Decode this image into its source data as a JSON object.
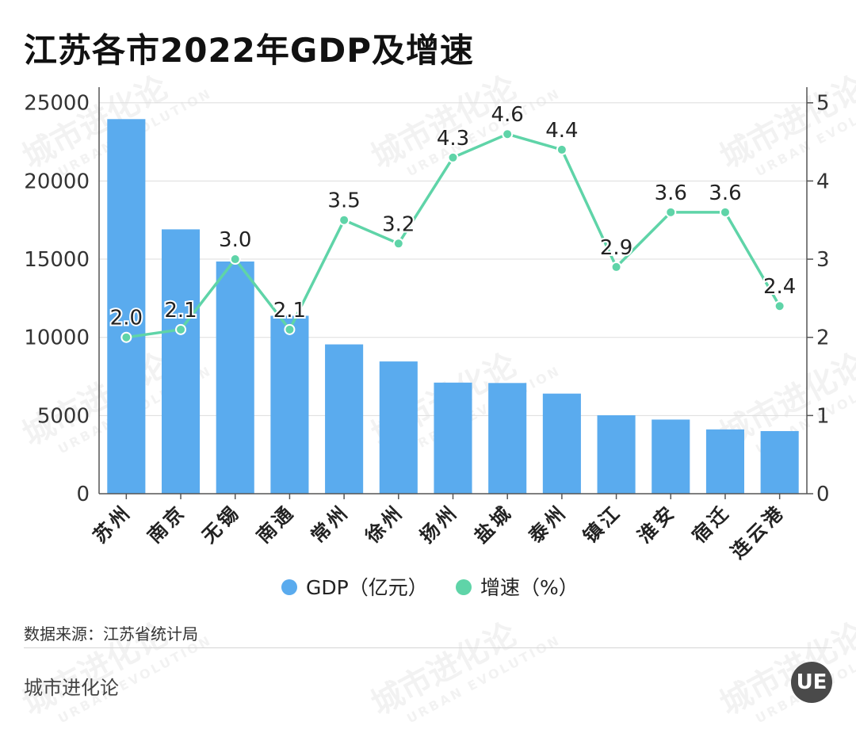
{
  "title": "江苏各市2022年GDP及增速",
  "source": "数据来源：江苏省统计局",
  "brand": "城市进化论",
  "logo_text": "UE",
  "watermark": {
    "main": "城市进化论",
    "sub": "URBAN EVOLUTION"
  },
  "colors": {
    "bar": "#5aabee",
    "line": "#5fd4a8",
    "grid": "#dddddd",
    "axis": "#555555"
  },
  "chart_data": {
    "type": "bar",
    "categories": [
      "苏州",
      "南京",
      "无锡",
      "南通",
      "常州",
      "徐州",
      "扬州",
      "盐城",
      "泰州",
      "镇江",
      "淮安",
      "宿迁",
      "连云港"
    ],
    "series": [
      {
        "name": "GDP（亿元）",
        "type": "bar",
        "axis": "left",
        "values": [
          23958,
          16907,
          14851,
          11380,
          9550,
          8458,
          7105,
          7080,
          6402,
          5017,
          4742,
          4112,
          4005
        ]
      },
      {
        "name": "增速（%）",
        "type": "line",
        "axis": "right",
        "values": [
          2.0,
          2.1,
          3.0,
          2.1,
          3.5,
          3.2,
          4.3,
          4.6,
          4.4,
          2.9,
          3.6,
          3.6,
          2.4
        ],
        "labels": [
          "2.0",
          "2.1",
          "3.0",
          "2.1",
          "3.5",
          "3.2",
          "4.3",
          "4.6",
          "4.4",
          "2.9",
          "3.6",
          "3.6",
          "2.4"
        ]
      }
    ],
    "y_left": {
      "ticks": [
        "0",
        "5000",
        "10000",
        "15000",
        "20000",
        "25000"
      ],
      "range": [
        0,
        26000
      ]
    },
    "y_right": {
      "ticks": [
        "0",
        "1",
        "2",
        "3",
        "4",
        "5"
      ],
      "range": [
        0,
        5.2
      ]
    },
    "grid": true,
    "legend": "bottom"
  }
}
